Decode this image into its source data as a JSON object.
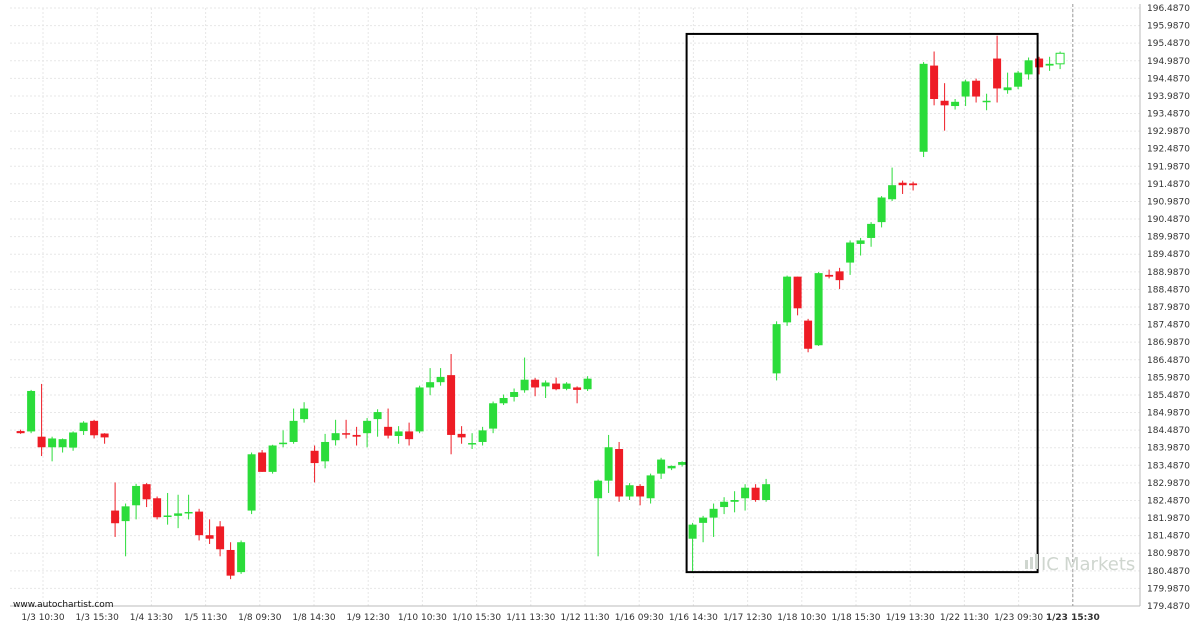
{
  "chart_data": {
    "type": "candlestick",
    "ylim": [
      179.487,
      196.487
    ],
    "y_ticks": [
      "196.4870",
      "195.9870",
      "195.4870",
      "194.9870",
      "194.4870",
      "193.9870",
      "193.4870",
      "192.9870",
      "192.4870",
      "191.9870",
      "191.4870",
      "190.9870",
      "190.4870",
      "189.9870",
      "189.4870",
      "188.9870",
      "188.4870",
      "187.9870",
      "187.4870",
      "186.9870",
      "186.4870",
      "185.9870",
      "185.4870",
      "184.9870",
      "184.4870",
      "183.9870",
      "183.4870",
      "182.9870",
      "182.4870",
      "181.9870",
      "181.4870",
      "180.9870",
      "180.4870",
      "179.9870",
      "179.4870"
    ],
    "x_ticks": [
      "1/3 10:30",
      "1/3 15:30",
      "1/4 13:30",
      "1/5 11:30",
      "1/8 09:30",
      "1/8 14:30",
      "1/9 12:30",
      "1/10 10:30",
      "1/10 15:30",
      "1/11 13:30",
      "1/12 11:30",
      "1/16 09:30",
      "1/16 14:30",
      "1/17 12:30",
      "1/18 10:30",
      "1/18 15:30",
      "1/19 13:30",
      "1/22 11:30",
      "1/23 09:30",
      "1/23 15:30"
    ],
    "highlight_x_tick": "1/23 15:30",
    "grid": true,
    "up_color": "#2bdc3a",
    "down_color": "#ee1c25",
    "pattern_box": {
      "x_from": 64,
      "x_to": 96,
      "y_low": 180.45,
      "y_high": 195.75
    },
    "candles": [
      [
        184.46,
        184.4,
        184.5,
        184.38
      ],
      [
        184.45,
        185.6,
        185.63,
        184.4
      ],
      [
        184.3,
        184.0,
        185.8,
        183.75
      ],
      [
        184.0,
        184.25,
        184.3,
        183.6
      ],
      [
        184.0,
        184.23,
        184.25,
        183.85
      ],
      [
        183.99,
        184.42,
        184.45,
        183.9
      ],
      [
        184.46,
        184.7,
        184.74,
        184.35
      ],
      [
        184.75,
        184.34,
        184.78,
        184.25
      ],
      [
        184.39,
        184.28,
        184.4,
        184.1
      ],
      [
        182.2,
        181.84,
        183.0,
        181.45
      ],
      [
        181.9,
        182.32,
        182.4,
        180.9
      ],
      [
        182.35,
        182.9,
        182.96,
        181.95
      ],
      [
        182.95,
        182.52,
        182.98,
        182.3
      ],
      [
        182.55,
        182.01,
        182.6,
        181.95
      ],
      [
        182.03,
        182.06,
        182.7,
        181.8
      ],
      [
        182.05,
        182.12,
        182.65,
        181.7
      ],
      [
        182.14,
        182.16,
        182.65,
        181.95
      ],
      [
        182.17,
        181.5,
        182.25,
        181.35
      ],
      [
        181.5,
        181.4,
        181.95,
        181.25
      ],
      [
        181.75,
        181.1,
        181.9,
        180.9
      ],
      [
        181.08,
        180.35,
        181.3,
        180.25
      ],
      [
        180.45,
        181.3,
        181.35,
        180.4
      ],
      [
        182.2,
        183.8,
        183.85,
        182.1
      ],
      [
        183.85,
        183.3,
        183.92,
        183.3
      ],
      [
        183.3,
        184.05,
        184.07,
        183.25
      ],
      [
        184.1,
        184.13,
        184.48,
        184.0
      ],
      [
        184.15,
        184.75,
        185.1,
        184.1
      ],
      [
        184.8,
        185.1,
        185.28,
        184.7
      ],
      [
        183.9,
        183.55,
        184.05,
        183.0
      ],
      [
        183.6,
        184.15,
        184.38,
        183.4
      ],
      [
        184.2,
        184.4,
        184.78,
        184.05
      ],
      [
        184.4,
        184.38,
        184.78,
        184.25
      ],
      [
        184.35,
        184.3,
        184.58,
        184.05
      ],
      [
        184.4,
        184.75,
        184.83,
        184.0
      ],
      [
        184.8,
        185.0,
        185.08,
        184.3
      ],
      [
        184.58,
        184.33,
        185.1,
        184.25
      ],
      [
        184.32,
        184.45,
        184.6,
        184.1
      ],
      [
        184.45,
        184.23,
        184.7,
        184.05
      ],
      [
        184.45,
        185.7,
        185.75,
        184.4
      ],
      [
        185.7,
        185.85,
        186.25,
        185.48
      ],
      [
        185.85,
        186.0,
        186.25,
        185.75
      ],
      [
        186.05,
        184.35,
        186.65,
        183.8
      ],
      [
        184.38,
        184.28,
        184.6,
        184.1
      ],
      [
        184.1,
        184.12,
        184.4,
        183.95
      ],
      [
        184.15,
        184.48,
        184.58,
        184.05
      ],
      [
        184.53,
        185.25,
        185.3,
        184.4
      ],
      [
        185.25,
        185.4,
        185.5,
        185.2
      ],
      [
        185.43,
        185.57,
        185.67,
        185.3
      ],
      [
        185.62,
        185.92,
        186.55,
        185.55
      ],
      [
        185.92,
        185.7,
        185.97,
        185.45
      ],
      [
        185.73,
        185.84,
        185.9,
        185.4
      ],
      [
        185.81,
        185.65,
        185.98,
        185.62
      ],
      [
        185.66,
        185.81,
        185.85,
        185.62
      ],
      [
        185.7,
        185.63,
        185.73,
        185.25
      ],
      [
        185.65,
        185.95,
        186.02,
        185.6
      ],
      [
        182.55,
        183.05,
        183.08,
        180.9
      ],
      [
        183.05,
        184.0,
        184.35,
        182.7
      ],
      [
        183.95,
        182.6,
        184.15,
        182.45
      ],
      [
        182.6,
        182.92,
        182.98,
        182.5
      ],
      [
        182.9,
        182.6,
        182.95,
        182.35
      ],
      [
        182.55,
        183.2,
        183.25,
        182.4
      ],
      [
        183.25,
        183.65,
        183.7,
        183.1
      ],
      [
        183.4,
        183.47,
        183.48,
        183.35
      ],
      [
        183.5,
        183.58,
        183.6,
        183.45
      ],
      [
        181.4,
        181.8,
        181.85,
        180.45
      ],
      [
        181.85,
        182.0,
        182.05,
        181.3
      ],
      [
        182.0,
        182.25,
        182.4,
        181.45
      ],
      [
        182.3,
        182.45,
        182.58,
        182.1
      ],
      [
        182.45,
        182.5,
        182.75,
        182.15
      ],
      [
        182.55,
        182.85,
        182.95,
        182.2
      ],
      [
        182.85,
        182.5,
        182.95,
        182.45
      ],
      [
        182.5,
        182.95,
        183.1,
        182.45
      ],
      [
        186.1,
        187.5,
        187.58,
        185.9
      ],
      [
        187.55,
        188.85,
        188.88,
        187.45
      ],
      [
        188.85,
        187.95,
        188.85,
        187.75
      ],
      [
        187.6,
        186.8,
        187.65,
        186.7
      ],
      [
        186.9,
        188.95,
        188.98,
        186.88
      ],
      [
        188.9,
        188.85,
        189.05,
        188.8
      ],
      [
        189.0,
        188.75,
        189.1,
        188.5
      ],
      [
        189.25,
        189.82,
        189.88,
        188.9
      ],
      [
        189.78,
        189.88,
        189.95,
        189.45
      ],
      [
        189.95,
        190.35,
        190.4,
        189.7
      ],
      [
        190.4,
        191.1,
        191.14,
        190.25
      ],
      [
        191.05,
        191.45,
        191.95,
        191.0
      ],
      [
        191.52,
        191.45,
        191.58,
        191.2
      ],
      [
        191.5,
        191.45,
        191.55,
        191.3
      ],
      [
        192.4,
        194.9,
        194.95,
        192.25
      ],
      [
        194.85,
        193.9,
        195.25,
        193.72
      ],
      [
        193.85,
        193.72,
        194.35,
        193.0
      ],
      [
        193.7,
        193.82,
        193.9,
        193.6
      ],
      [
        193.97,
        194.4,
        194.45,
        193.7
      ],
      [
        194.42,
        193.97,
        194.48,
        193.8
      ],
      [
        193.82,
        193.85,
        194.05,
        193.58
      ],
      [
        195.05,
        194.2,
        195.7,
        193.8
      ],
      [
        194.15,
        194.23,
        194.65,
        194.05
      ],
      [
        194.25,
        194.65,
        194.7,
        194.18
      ],
      [
        194.6,
        195.0,
        195.08,
        194.45
      ],
      [
        195.05,
        194.8,
        195.1,
        194.6
      ],
      [
        194.85,
        194.9,
        195.1,
        194.7
      ],
      [
        194.9,
        195.2,
        195.25,
        194.75
      ]
    ]
  },
  "footer": {
    "source": "www.autochartist.com"
  },
  "watermark": {
    "brand_ic": "IC",
    "brand_name": "Markets"
  },
  "colors": {
    "frame": "#000000",
    "grid": "#e7e7e7"
  }
}
